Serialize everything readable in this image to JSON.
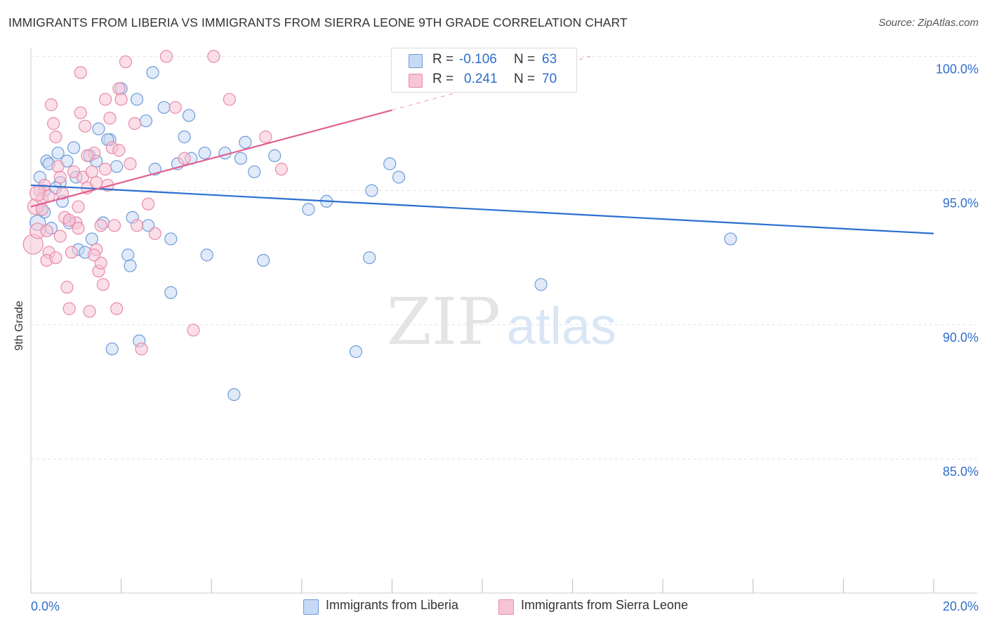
{
  "header": {
    "title": "IMMIGRANTS FROM LIBERIA VS IMMIGRANTS FROM SIERRA LEONE 9TH GRADE CORRELATION CHART",
    "source": "Source: ZipAtlas.com"
  },
  "watermark": {
    "zip": "ZIP",
    "atlas": "atlas"
  },
  "legend": {
    "r_label": "R =",
    "n_label": "N =",
    "rows": [
      {
        "name": "Immigrants from Liberia",
        "r": "-0.106",
        "n": "63"
      },
      {
        "name": "Immigrants from Sierra Leone",
        "r": "0.241",
        "n": "70"
      }
    ]
  },
  "colors": {
    "blue_fill": "#c7d9f4",
    "blue_stroke": "#6f9bd8",
    "blue_line": "#2a6fcf",
    "pink_fill": "#f7c5d5",
    "pink_stroke": "#e88aa8",
    "pink_line": "#e06090",
    "axis_text": "#2f6fcb",
    "grid": "#e2e2e2"
  },
  "chart_data": {
    "type": "scatter",
    "title": "IMMIGRANTS FROM LIBERIA VS IMMIGRANTS FROM SIERRA LEONE 9TH GRADE CORRELATION CHART",
    "xlabel": "",
    "ylabel": "9th Grade",
    "xlim": [
      0,
      20
    ],
    "ylim": [
      80.5,
      100.9
    ],
    "x_tick_labels": [
      "0.0%",
      "20.0%"
    ],
    "y_ticks": [
      85,
      90,
      95,
      100
    ],
    "y_tick_labels": [
      "85.0%",
      "90.0%",
      "95.0%",
      "100.0%"
    ],
    "grid": "horizontal dashed",
    "legend_position": "top-center",
    "series": [
      {
        "name": "Immigrants from Liberia",
        "color": "#6f9bd8",
        "points": [
          [
            0.15,
            93.8
          ],
          [
            0.2,
            95.5
          ],
          [
            0.25,
            94.3
          ],
          [
            0.3,
            95.0
          ],
          [
            0.35,
            96.1
          ],
          [
            0.45,
            93.6
          ],
          [
            0.6,
            96.4
          ],
          [
            0.65,
            95.3
          ],
          [
            0.8,
            96.1
          ],
          [
            1.0,
            95.5
          ],
          [
            1.05,
            92.8
          ],
          [
            1.3,
            96.3
          ],
          [
            1.45,
            96.1
          ],
          [
            1.6,
            93.8
          ],
          [
            1.75,
            96.9
          ],
          [
            1.9,
            95.9
          ],
          [
            2.0,
            98.8
          ],
          [
            2.25,
            94.0
          ],
          [
            2.4,
            89.4
          ],
          [
            2.55,
            97.6
          ],
          [
            2.75,
            95.8
          ],
          [
            2.95,
            98.1
          ],
          [
            3.1,
            91.2
          ],
          [
            3.25,
            96.0
          ],
          [
            3.4,
            97.0
          ],
          [
            3.5,
            97.8
          ],
          [
            3.55,
            96.2
          ],
          [
            3.85,
            96.4
          ],
          [
            3.9,
            92.6
          ],
          [
            4.3,
            96.4
          ],
          [
            4.5,
            87.4
          ],
          [
            4.65,
            96.2
          ],
          [
            4.75,
            96.8
          ],
          [
            4.95,
            95.7
          ],
          [
            5.15,
            92.4
          ],
          [
            5.4,
            96.3
          ],
          [
            6.15,
            94.3
          ],
          [
            6.55,
            94.6
          ],
          [
            7.2,
            89.0
          ],
          [
            7.5,
            92.5
          ],
          [
            7.55,
            95.0
          ],
          [
            7.95,
            96.0
          ],
          [
            8.15,
            95.5
          ],
          [
            9.5,
            99.9
          ],
          [
            11.3,
            91.5
          ],
          [
            15.5,
            93.2
          ],
          [
            2.7,
            99.4
          ],
          [
            2.35,
            98.4
          ],
          [
            1.5,
            97.3
          ],
          [
            1.8,
            89.1
          ],
          [
            0.55,
            95.1
          ],
          [
            0.85,
            93.8
          ],
          [
            1.35,
            93.2
          ],
          [
            2.15,
            92.6
          ],
          [
            2.6,
            93.7
          ],
          [
            3.1,
            93.2
          ],
          [
            0.95,
            96.6
          ],
          [
            1.7,
            96.9
          ],
          [
            0.4,
            96.0
          ],
          [
            0.7,
            94.6
          ],
          [
            2.2,
            92.2
          ],
          [
            1.2,
            92.7
          ],
          [
            0.3,
            94.2
          ]
        ]
      },
      {
        "name": "Immigrants from Sierra Leone",
        "color": "#e88aa8",
        "points": [
          [
            0.05,
            93.0
          ],
          [
            0.1,
            94.4
          ],
          [
            0.15,
            93.5
          ],
          [
            0.2,
            95.0
          ],
          [
            0.25,
            94.7
          ],
          [
            0.3,
            95.2
          ],
          [
            0.35,
            93.5
          ],
          [
            0.4,
            92.7
          ],
          [
            0.45,
            98.2
          ],
          [
            0.5,
            97.5
          ],
          [
            0.55,
            97.0
          ],
          [
            0.6,
            95.9
          ],
          [
            0.65,
            95.5
          ],
          [
            0.7,
            94.9
          ],
          [
            0.75,
            94.0
          ],
          [
            0.8,
            91.4
          ],
          [
            0.85,
            90.6
          ],
          [
            0.9,
            92.7
          ],
          [
            0.95,
            95.7
          ],
          [
            1.0,
            93.8
          ],
          [
            1.05,
            94.4
          ],
          [
            1.1,
            97.9
          ],
          [
            1.15,
            95.5
          ],
          [
            1.2,
            97.4
          ],
          [
            1.25,
            95.1
          ],
          [
            1.3,
            90.5
          ],
          [
            1.35,
            95.7
          ],
          [
            1.4,
            96.4
          ],
          [
            1.45,
            92.8
          ],
          [
            1.5,
            92.0
          ],
          [
            1.55,
            93.7
          ],
          [
            1.6,
            91.5
          ],
          [
            1.65,
            98.4
          ],
          [
            1.7,
            95.2
          ],
          [
            1.75,
            97.7
          ],
          [
            1.8,
            96.6
          ],
          [
            1.85,
            93.7
          ],
          [
            1.9,
            90.6
          ],
          [
            1.95,
            98.8
          ],
          [
            2.0,
            98.4
          ],
          [
            2.1,
            99.8
          ],
          [
            2.2,
            96.0
          ],
          [
            2.3,
            97.5
          ],
          [
            2.45,
            89.1
          ],
          [
            2.6,
            94.5
          ],
          [
            2.75,
            93.4
          ],
          [
            3.0,
            100.0
          ],
          [
            3.2,
            98.1
          ],
          [
            3.4,
            96.2
          ],
          [
            3.6,
            89.8
          ],
          [
            4.05,
            100.0
          ],
          [
            4.4,
            98.4
          ],
          [
            5.2,
            97.0
          ],
          [
            5.55,
            95.8
          ],
          [
            0.15,
            94.9
          ],
          [
            0.25,
            94.3
          ],
          [
            0.35,
            92.4
          ],
          [
            0.55,
            92.5
          ],
          [
            0.65,
            93.3
          ],
          [
            0.85,
            93.9
          ],
          [
            1.05,
            93.6
          ],
          [
            1.25,
            96.3
          ],
          [
            1.45,
            95.3
          ],
          [
            1.65,
            95.8
          ],
          [
            1.95,
            96.5
          ],
          [
            1.1,
            99.4
          ],
          [
            1.55,
            92.3
          ],
          [
            2.35,
            93.7
          ],
          [
            1.4,
            92.6
          ],
          [
            0.4,
            94.8
          ]
        ]
      }
    ],
    "trendlines": [
      {
        "series": "Immigrants from Liberia",
        "x": [
          0,
          20
        ],
        "y": [
          95.2,
          93.4
        ]
      },
      {
        "series": "Immigrants from Sierra Leone",
        "x": [
          0,
          8.0
        ],
        "y": [
          94.4,
          98.0
        ],
        "dashed_extension_to": [
          12.4,
          100.0
        ]
      }
    ]
  }
}
